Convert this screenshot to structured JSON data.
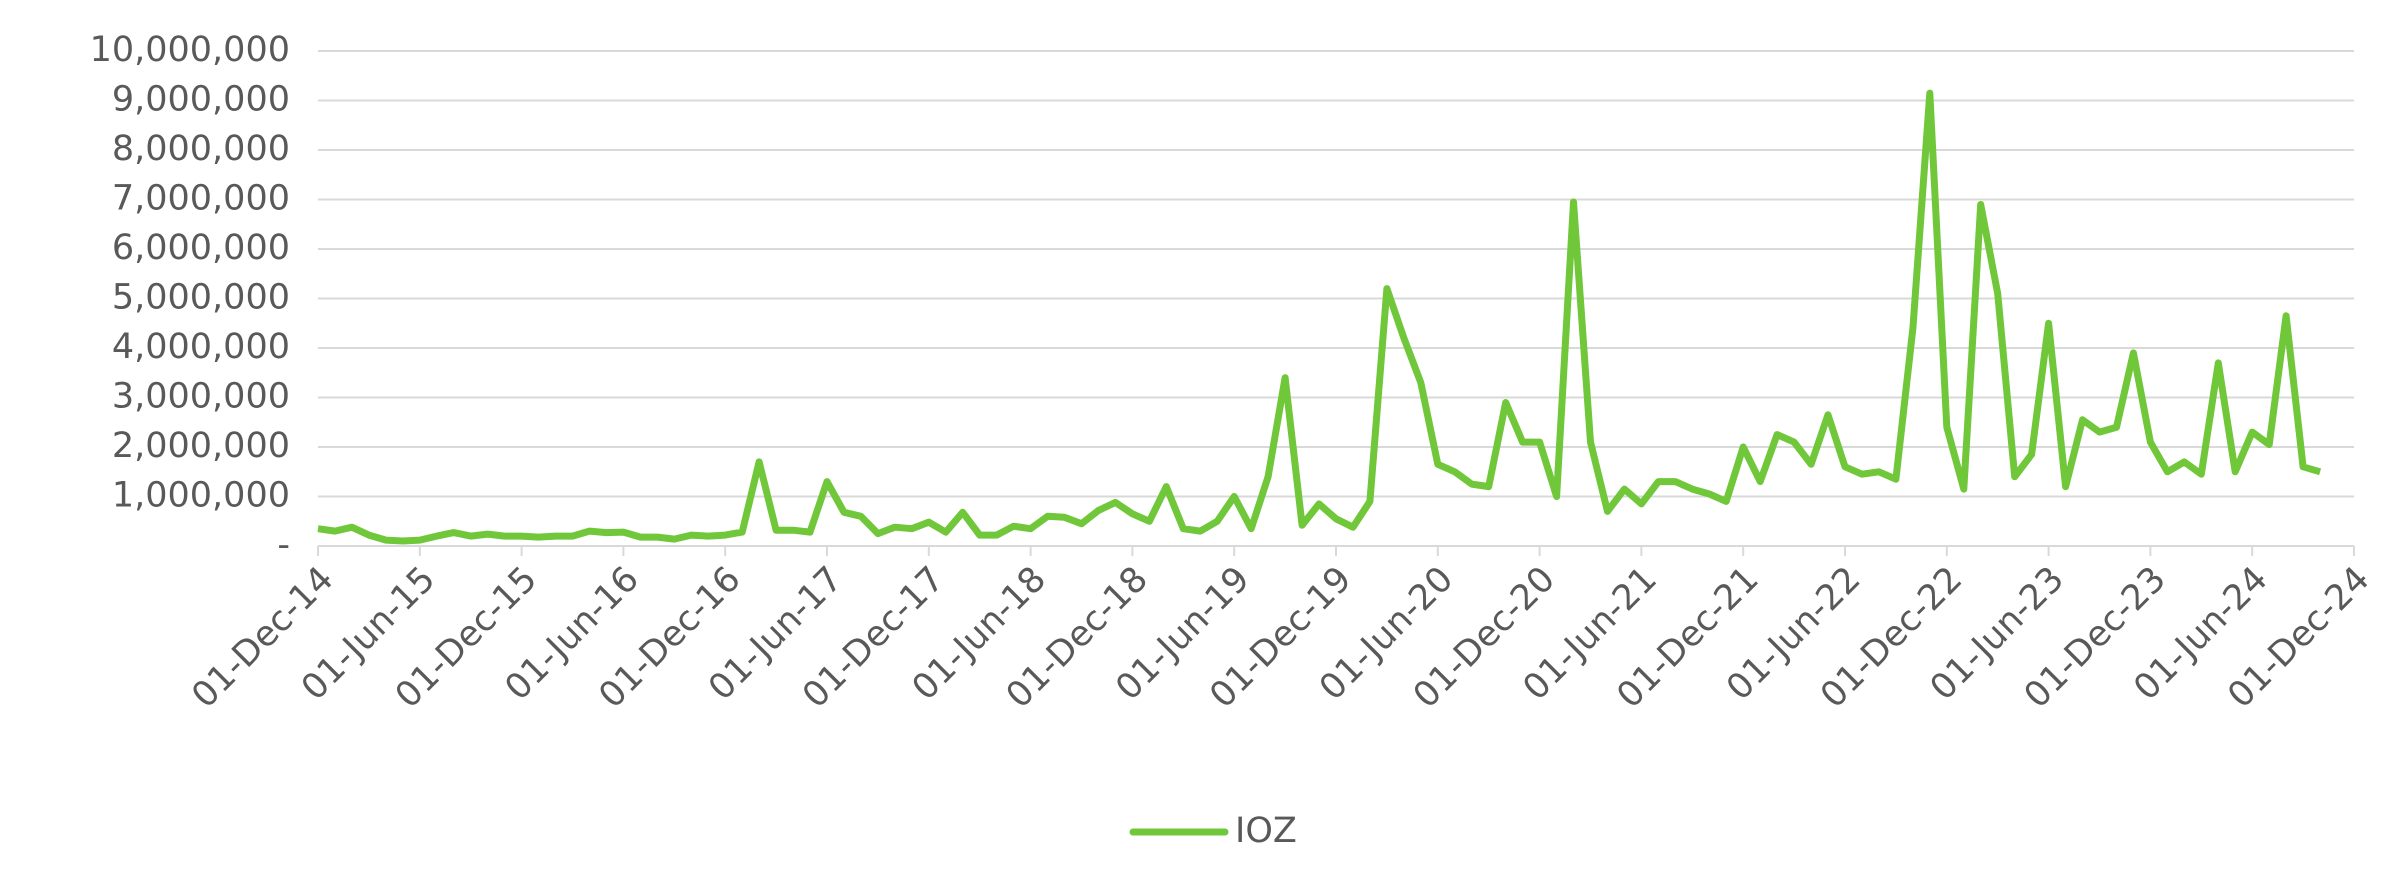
{
  "chart_data": {
    "type": "line",
    "categories": [
      "01-Dec-14",
      null,
      null,
      null,
      null,
      null,
      "01-Jun-15",
      null,
      null,
      null,
      null,
      null,
      "01-Dec-15",
      null,
      null,
      null,
      null,
      null,
      "01-Jun-16",
      null,
      null,
      null,
      null,
      null,
      "01-Dec-16",
      null,
      null,
      null,
      null,
      null,
      "01-Jun-17",
      null,
      null,
      null,
      null,
      null,
      "01-Dec-17",
      null,
      null,
      null,
      null,
      null,
      "01-Jun-18",
      null,
      null,
      null,
      null,
      null,
      "01-Dec-18",
      null,
      null,
      null,
      null,
      null,
      "01-Jun-19",
      null,
      null,
      null,
      null,
      null,
      "01-Dec-19",
      null,
      null,
      null,
      null,
      null,
      "01-Jun-20",
      null,
      null,
      null,
      null,
      null,
      "01-Dec-20",
      null,
      null,
      null,
      null,
      null,
      "01-Jun-21",
      null,
      null,
      null,
      null,
      null,
      "01-Dec-21",
      null,
      null,
      null,
      null,
      null,
      "01-Jun-22",
      null,
      null,
      null,
      null,
      null,
      "01-Dec-22",
      null,
      null,
      null,
      null,
      null,
      "01-Jun-23",
      null,
      null,
      null,
      null,
      null,
      "01-Dec-23",
      null,
      null,
      null,
      null,
      null,
      "01-Jun-24",
      null,
      null,
      null,
      null,
      null,
      "01-Dec-24"
    ],
    "series": [
      {
        "name": "IOZ",
        "color": "#70c73a",
        "values": [
          350000,
          300000,
          380000,
          220000,
          120000,
          100000,
          120000,
          200000,
          270000,
          200000,
          240000,
          200000,
          200000,
          180000,
          200000,
          200000,
          300000,
          270000,
          280000,
          180000,
          180000,
          140000,
          220000,
          200000,
          220000,
          280000,
          1700000,
          320000,
          320000,
          280000,
          1300000,
          680000,
          600000,
          250000,
          380000,
          350000,
          480000,
          280000,
          680000,
          220000,
          220000,
          400000,
          350000,
          600000,
          580000,
          450000,
          720000,
          880000,
          650000,
          500000,
          1200000,
          350000,
          300000,
          500000,
          1000000,
          350000,
          1400000,
          3400000,
          420000,
          850000,
          550000,
          380000,
          900000,
          5200000,
          4200000,
          3300000,
          1650000,
          1500000,
          1250000,
          1200000,
          2900000,
          2100000,
          2100000,
          1000000,
          6950000,
          2100000,
          700000,
          1150000,
          850000,
          1300000,
          1300000,
          1150000,
          1050000,
          900000,
          2000000,
          1300000,
          2250000,
          2100000,
          1650000,
          2650000,
          1600000,
          1450000,
          1500000,
          1350000,
          4400000,
          9150000,
          2400000,
          1150000,
          6900000,
          5100000,
          1400000,
          1850000,
          4500000,
          1200000,
          2550000,
          2300000,
          2400000,
          3900000,
          2100000,
          1500000,
          1700000,
          1450000,
          3700000,
          1500000,
          2300000,
          2050000,
          4650000,
          1600000,
          1500000,
          null,
          null
        ]
      }
    ],
    "ylim": [
      0,
      10000000
    ],
    "yticks": [
      {
        "value": 0,
        "label": "-"
      },
      {
        "value": 1000000,
        "label": "1,000,000"
      },
      {
        "value": 2000000,
        "label": "2,000,000"
      },
      {
        "value": 3000000,
        "label": "3,000,000"
      },
      {
        "value": 4000000,
        "label": "4,000,000"
      },
      {
        "value": 5000000,
        "label": "5,000,000"
      },
      {
        "value": 6000000,
        "label": "6,000,000"
      },
      {
        "value": 7000000,
        "label": "7,000,000"
      },
      {
        "value": 8000000,
        "label": "8,000,000"
      },
      {
        "value": 9000000,
        "label": "9,000,000"
      },
      {
        "value": 10000000,
        "label": "10,000,000"
      }
    ],
    "grid": true,
    "legend": "bottom"
  }
}
